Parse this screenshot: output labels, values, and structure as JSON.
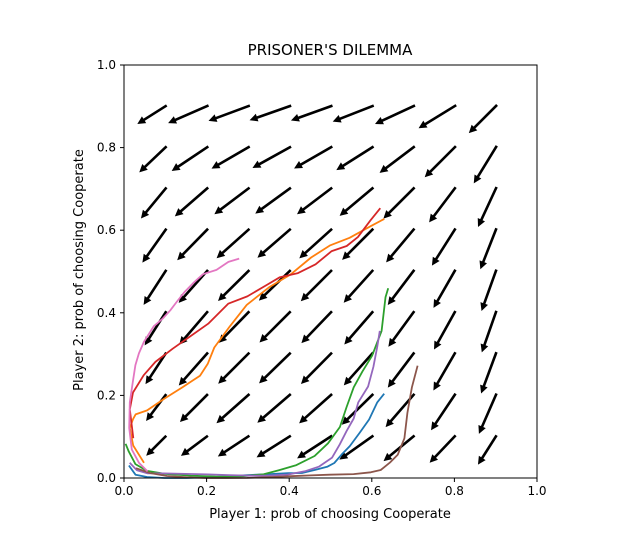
{
  "chart_data": {
    "type": "line",
    "title": "PRISONER'S DILEMMA",
    "xlabel": "Player 1: prob of choosing Cooperate",
    "ylabel": "Player 2: prob of choosing Cooperate",
    "xlim": [
      0,
      1
    ],
    "ylim": [
      0,
      1
    ],
    "xticks": [
      "0.0",
      "0.2",
      "0.4",
      "0.6",
      "0.8",
      "1.0"
    ],
    "yticks": [
      "0.0",
      "0.2",
      "0.4",
      "0.6",
      "0.8",
      "1.0"
    ],
    "grid": false,
    "legend": "none",
    "vector_field": {
      "grid": [
        0.1,
        0.2,
        0.3,
        0.4,
        0.5,
        0.6,
        0.7,
        0.8,
        0.9
      ],
      "color": "#000000",
      "description_of_pattern": "dX = x(1-x)(y-0.55)*k, dY = y(1-y)(x-0.55)*k style flow toward (0,0)"
    },
    "series": [
      {
        "color": "#1f77b4",
        "x": [
          0.63,
          0.61,
          0.59,
          0.57,
          0.55,
          0.53,
          0.51,
          0.49,
          0.46,
          0.43,
          0.4,
          0.35,
          0.3,
          0.25,
          0.2,
          0.15,
          0.1,
          0.06,
          0.03,
          0.01
        ],
        "y": [
          0.2,
          0.18,
          0.14,
          0.11,
          0.08,
          0.06,
          0.04,
          0.03,
          0.02,
          0.01,
          0.008,
          0.005,
          0.004,
          0.003,
          0.003,
          0.003,
          0.004,
          0.006,
          0.01,
          0.03
        ]
      },
      {
        "color": "#ff7f0e",
        "x": [
          0.63,
          0.6,
          0.55,
          0.5,
          0.45,
          0.4,
          0.35,
          0.3,
          0.26,
          0.22,
          0.2,
          0.18,
          0.14,
          0.1,
          0.06,
          0.03,
          0.02,
          0.01,
          0.02,
          0.05
        ],
        "y": [
          0.63,
          0.61,
          0.58,
          0.56,
          0.53,
          0.49,
          0.46,
          0.42,
          0.37,
          0.32,
          0.28,
          0.25,
          0.22,
          0.19,
          0.16,
          0.15,
          0.14,
          0.12,
          0.08,
          0.04
        ]
      },
      {
        "color": "#2ca02c",
        "x": [
          0.64,
          0.63,
          0.62,
          0.6,
          0.58,
          0.56,
          0.54,
          0.52,
          0.49,
          0.46,
          0.42,
          0.38,
          0.34,
          0.28,
          0.22,
          0.16,
          0.1,
          0.06,
          0.03,
          0.01,
          0.0
        ],
        "y": [
          0.46,
          0.44,
          0.36,
          0.3,
          0.26,
          0.22,
          0.17,
          0.12,
          0.08,
          0.05,
          0.03,
          0.02,
          0.012,
          0.008,
          0.007,
          0.008,
          0.01,
          0.015,
          0.03,
          0.06,
          0.08
        ]
      },
      {
        "color": "#d62728",
        "x": [
          0.62,
          0.6,
          0.57,
          0.54,
          0.5,
          0.46,
          0.42,
          0.38,
          0.35,
          0.3,
          0.25,
          0.2,
          0.16,
          0.12,
          0.08,
          0.05,
          0.02,
          0.01,
          0.02
        ],
        "y": [
          0.65,
          0.62,
          0.58,
          0.56,
          0.55,
          0.52,
          0.5,
          0.49,
          0.47,
          0.44,
          0.42,
          0.37,
          0.34,
          0.31,
          0.28,
          0.25,
          0.21,
          0.17,
          0.1
        ]
      },
      {
        "color": "#9467bd",
        "x": [
          0.62,
          0.61,
          0.6,
          0.59,
          0.57,
          0.56,
          0.54,
          0.52,
          0.5,
          0.47,
          0.44,
          0.4,
          0.35,
          0.3,
          0.25,
          0.2,
          0.15,
          0.1,
          0.06,
          0.03,
          0.01
        ],
        "y": [
          0.36,
          0.32,
          0.27,
          0.22,
          0.18,
          0.14,
          0.11,
          0.08,
          0.05,
          0.03,
          0.02,
          0.012,
          0.008,
          0.006,
          0.005,
          0.005,
          0.006,
          0.008,
          0.01,
          0.02,
          0.04
        ]
      },
      {
        "color": "#8c564b",
        "x": [
          0.71,
          0.7,
          0.69,
          0.68,
          0.66,
          0.64,
          0.62,
          0.6,
          0.56,
          0.5,
          0.45,
          0.4,
          0.35,
          0.3,
          0.25,
          0.2,
          0.15,
          0.1,
          0.06,
          0.03
        ],
        "y": [
          0.27,
          0.22,
          0.16,
          0.1,
          0.06,
          0.04,
          0.02,
          0.012,
          0.006,
          0.004,
          0.003,
          0.003,
          0.003,
          0.003,
          0.003,
          0.003,
          0.004,
          0.005,
          0.01,
          0.02
        ]
      },
      {
        "color": "#e377c2",
        "x": [
          0.28,
          0.25,
          0.22,
          0.19,
          0.17,
          0.15,
          0.13,
          0.11,
          0.09,
          0.07,
          0.05,
          0.04,
          0.03,
          0.02,
          0.01,
          0.01,
          0.02,
          0.04,
          0.06
        ],
        "y": [
          0.53,
          0.52,
          0.5,
          0.49,
          0.47,
          0.45,
          0.43,
          0.41,
          0.39,
          0.37,
          0.33,
          0.3,
          0.27,
          0.23,
          0.18,
          0.12,
          0.07,
          0.04,
          0.02
        ]
      }
    ]
  }
}
